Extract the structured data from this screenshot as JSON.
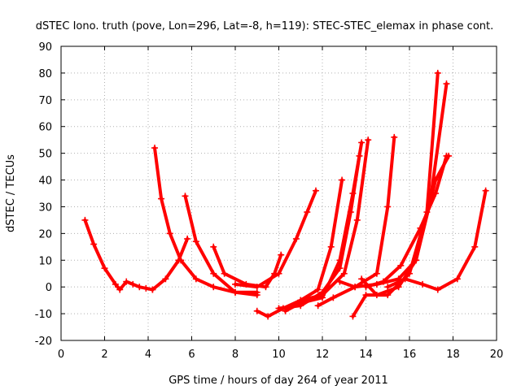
{
  "chart_data": {
    "type": "scatter",
    "title": "dSTEC Iono. truth (pove, Lon=296, Lat=-8, h=119): STEC-STEC_elemax in phase cont.",
    "xlabel": "GPS time / hours of day 264 of year 2011",
    "ylabel": "dSTEC  / TECUs",
    "xlim": [
      0,
      20
    ],
    "ylim": [
      -20,
      90
    ],
    "xticks": [
      0,
      2,
      4,
      6,
      8,
      10,
      12,
      14,
      16,
      18,
      20
    ],
    "yticks": [
      -20,
      -10,
      0,
      10,
      20,
      30,
      40,
      50,
      60,
      70,
      80,
      90
    ],
    "grid": true,
    "marker": "plus",
    "color": "#ff0000",
    "series": [
      {
        "x": [
          1.1,
          1.5,
          2.0,
          2.5,
          2.7,
          3.0,
          3.3,
          3.6,
          3.9,
          4.2
        ],
        "y": [
          25,
          16,
          7,
          1,
          -1,
          2,
          1,
          0,
          -0.5,
          -1
        ]
      },
      {
        "x": [
          4.2,
          4.8,
          5.4,
          5.8
        ],
        "y": [
          -1,
          3,
          10,
          18
        ]
      },
      {
        "x": [
          4.3,
          4.6,
          5.0,
          5.5,
          6.2,
          7.0,
          8.0,
          9.0
        ],
        "y": [
          52,
          33,
          20,
          10,
          3,
          0,
          -2,
          -2
        ]
      },
      {
        "x": [
          5.7,
          6.2,
          7.0,
          8.0,
          9.0
        ],
        "y": [
          34,
          17,
          5,
          -2,
          -3
        ]
      },
      {
        "x": [
          7.0,
          7.5,
          8.5,
          9.4,
          9.8,
          10.1
        ],
        "y": [
          15,
          5,
          1,
          0,
          5,
          12
        ]
      },
      {
        "x": [
          8.0,
          9.0,
          10.0,
          10.8,
          11.3,
          11.7
        ],
        "y": [
          1,
          0,
          5,
          18,
          28,
          36
        ]
      },
      {
        "x": [
          9.0,
          9.5,
          10.2,
          11.0,
          11.8,
          12.4,
          12.9
        ],
        "y": [
          -9,
          -11,
          -8,
          -5,
          -1,
          15,
          40
        ]
      },
      {
        "x": [
          10.3,
          11.0,
          12.0,
          12.8,
          13.4,
          13.8
        ],
        "y": [
          -9,
          -6,
          -4,
          10,
          35,
          54
        ]
      },
      {
        "x": [
          10.0,
          11.0,
          12.0,
          12.8,
          13.3,
          13.7
        ],
        "y": [
          -8,
          -7,
          -2,
          7,
          28,
          49
        ]
      },
      {
        "x": [
          11.0,
          12.0,
          13.0,
          13.6,
          14.1
        ],
        "y": [
          -5,
          -3,
          5,
          25,
          55
        ]
      },
      {
        "x": [
          11.8,
          12.5,
          13.5,
          14.5,
          15.0,
          15.3
        ],
        "y": [
          -7,
          -4,
          0,
          5,
          30,
          56
        ]
      },
      {
        "x": [
          12.8,
          13.5,
          14.5,
          15.5,
          16.3,
          17.2,
          17.8
        ],
        "y": [
          2,
          0,
          1,
          3,
          10,
          40,
          49
        ]
      },
      {
        "x": [
          13.4,
          14.0,
          15.0,
          16.0,
          16.8,
          17.3
        ],
        "y": [
          -11,
          -3,
          -3,
          5,
          28,
          80
        ]
      },
      {
        "x": [
          13.8,
          14.5,
          15.5,
          16.3,
          17.0,
          17.7
        ],
        "y": [
          3,
          -3,
          0,
          10,
          35,
          76
        ]
      },
      {
        "x": [
          14.0,
          14.8,
          15.6,
          16.5,
          17.2,
          17.7
        ],
        "y": [
          0,
          2,
          8,
          22,
          35,
          49
        ]
      },
      {
        "x": [
          15.0,
          15.8,
          16.6,
          17.3,
          18.2,
          19.0,
          19.5
        ],
        "y": [
          0,
          3,
          1,
          -1,
          3,
          15,
          36
        ]
      }
    ]
  }
}
